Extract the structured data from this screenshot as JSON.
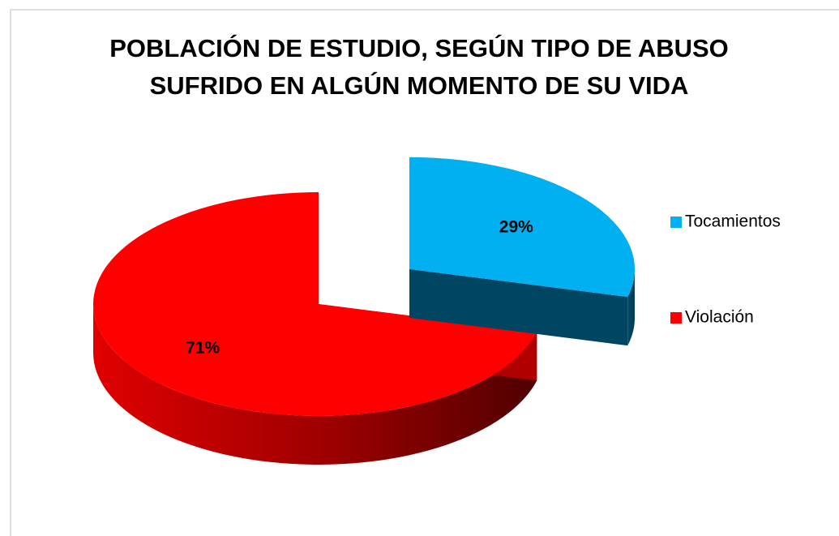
{
  "chart_data": {
    "type": "pie3d",
    "title": [
      "POBLACIÓN DE ESTUDIO, SEGÚN TIPO DE ABUSO",
      "SUFRIDO EN ALGÚN MOMENTO DE SU VIDA"
    ],
    "categories": [
      "Tocamientos",
      "Violación"
    ],
    "values": [
      29,
      71
    ],
    "value_labels": [
      "29%",
      "71%"
    ],
    "colors": [
      "#00b0f0",
      "#ff0000"
    ],
    "legend": "right"
  }
}
